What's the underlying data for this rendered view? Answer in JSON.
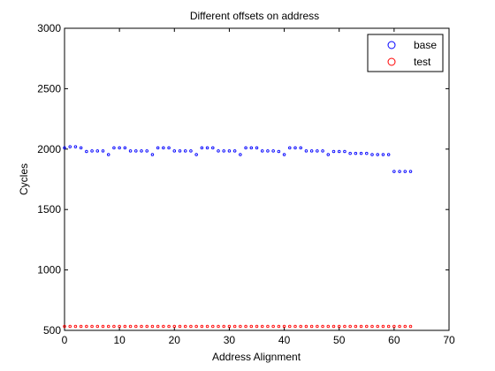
{
  "chart_data": {
    "type": "scatter",
    "title": "Different offsets on address",
    "xlabel": "Address Alignment",
    "ylabel": "Cycles",
    "xlim": [
      0,
      70
    ],
    "ylim": [
      500,
      3000
    ],
    "xticks": [
      0,
      10,
      20,
      30,
      40,
      50,
      60,
      70
    ],
    "yticks": [
      500,
      1000,
      1500,
      2000,
      2500,
      3000
    ],
    "grid": false,
    "legend_position": "top-right",
    "series": [
      {
        "name": "base",
        "color": "#0000ff",
        "marker": "circle",
        "x": [
          0,
          1,
          2,
          3,
          4,
          5,
          6,
          7,
          8,
          9,
          10,
          11,
          12,
          13,
          14,
          15,
          16,
          17,
          18,
          19,
          20,
          21,
          22,
          23,
          24,
          25,
          26,
          27,
          28,
          29,
          30,
          31,
          32,
          33,
          34,
          35,
          36,
          37,
          38,
          39,
          40,
          41,
          42,
          43,
          44,
          45,
          46,
          47,
          48,
          49,
          50,
          51,
          52,
          53,
          54,
          55,
          56,
          57,
          58,
          59,
          60,
          61,
          62,
          63
        ],
        "y": [
          2010,
          2020,
          2020,
          2010,
          1980,
          1985,
          1985,
          1985,
          1955,
          2010,
          2010,
          2010,
          1985,
          1985,
          1985,
          1985,
          1955,
          2010,
          2010,
          2010,
          1985,
          1985,
          1985,
          1985,
          1955,
          2010,
          2010,
          2010,
          1985,
          1985,
          1985,
          1985,
          1955,
          2010,
          2010,
          2010,
          1985,
          1985,
          1985,
          1980,
          1955,
          2010,
          2010,
          2010,
          1985,
          1985,
          1985,
          1985,
          1955,
          1980,
          1980,
          1980,
          1965,
          1965,
          1965,
          1965,
          1955,
          1955,
          1955,
          1955,
          1815,
          1815,
          1815,
          1815
        ]
      },
      {
        "name": "test",
        "color": "#ff0000",
        "marker": "circle",
        "x": [
          0,
          1,
          2,
          3,
          4,
          5,
          6,
          7,
          8,
          9,
          10,
          11,
          12,
          13,
          14,
          15,
          16,
          17,
          18,
          19,
          20,
          21,
          22,
          23,
          24,
          25,
          26,
          27,
          28,
          29,
          30,
          31,
          32,
          33,
          34,
          35,
          36,
          37,
          38,
          39,
          40,
          41,
          42,
          43,
          44,
          45,
          46,
          47,
          48,
          49,
          50,
          51,
          52,
          53,
          54,
          55,
          56,
          57,
          58,
          59,
          60,
          61,
          62,
          63
        ],
        "y": [
          533,
          533,
          533,
          533,
          533,
          533,
          533,
          533,
          533,
          533,
          533,
          533,
          533,
          533,
          533,
          533,
          533,
          533,
          533,
          533,
          533,
          533,
          533,
          533,
          533,
          533,
          533,
          533,
          533,
          533,
          533,
          533,
          533,
          533,
          533,
          533,
          533,
          533,
          533,
          533,
          533,
          533,
          533,
          533,
          533,
          533,
          533,
          533,
          533,
          533,
          533,
          533,
          533,
          533,
          533,
          533,
          533,
          533,
          533,
          533,
          533,
          533,
          533,
          533
        ]
      }
    ]
  }
}
